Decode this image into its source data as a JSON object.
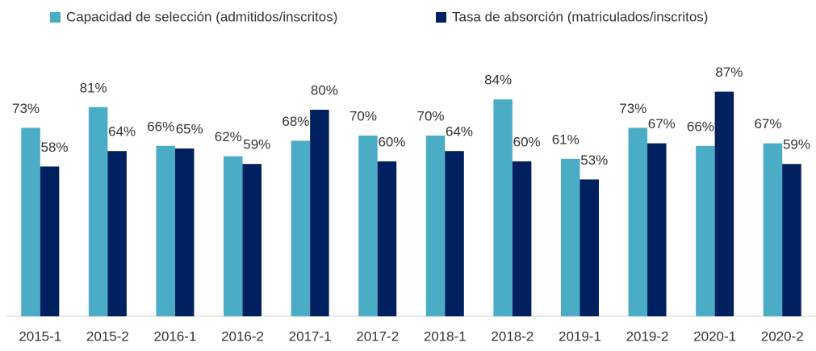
{
  "chart_data": {
    "type": "bar",
    "categories": [
      "2015-1",
      "2015-2",
      "2016-1",
      "2016-2",
      "2017-1",
      "2017-2",
      "2018-1",
      "2018-2",
      "2019-1",
      "2019-2",
      "2020-1",
      "2020-2"
    ],
    "series": [
      {
        "name": "Capacidad de selección (admitidos/inscritos)",
        "color": "#4bacc6",
        "values": [
          73,
          81,
          66,
          62,
          68,
          70,
          70,
          84,
          61,
          73,
          66,
          67
        ],
        "value_labels": [
          "73%",
          "81%",
          "66%",
          "62%",
          "68%",
          "70%",
          "70%",
          "84%",
          "61%",
          "73%",
          "66%",
          "67%"
        ]
      },
      {
        "name": "Tasa de absorción (matriculados/inscritos)",
        "color": "#002060",
        "values": [
          58,
          64,
          65,
          59,
          80,
          60,
          64,
          60,
          53,
          67,
          87,
          59
        ],
        "value_labels": [
          "58%",
          "64%",
          "65%",
          "59%",
          "80%",
          "60%",
          "64%",
          "60%",
          "53%",
          "67%",
          "87%",
          "59%"
        ]
      }
    ],
    "ylim": [
      0,
      100
    ],
    "legend": "top"
  }
}
